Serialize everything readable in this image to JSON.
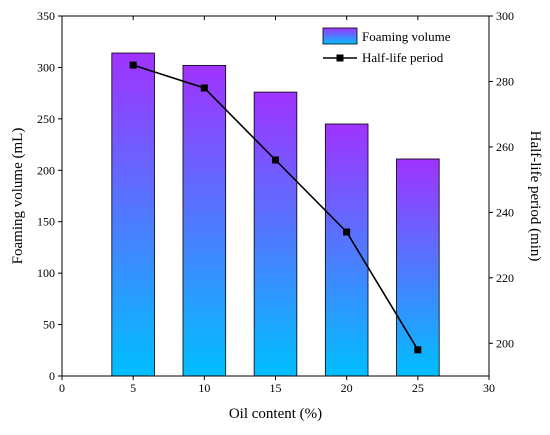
{
  "chart_data": {
    "type": "bar",
    "title": "",
    "xlabel": "Oil content (%)",
    "ylabel": "Foaming volume (mL)",
    "y2label": "Half-life period (min)",
    "xlim": [
      0,
      30
    ],
    "ylim": [
      0,
      350
    ],
    "y2lim": [
      190,
      300
    ],
    "xticks": [
      0,
      5,
      10,
      15,
      20,
      25,
      30
    ],
    "yticks": [
      0,
      50,
      100,
      150,
      200,
      250,
      300,
      350
    ],
    "y2ticks": [
      200,
      220,
      240,
      260,
      280,
      300
    ],
    "x": [
      5,
      10,
      15,
      20,
      25
    ],
    "series": [
      {
        "name": "Foaming volume",
        "type": "bar",
        "axis": "left",
        "values": [
          314,
          302,
          276,
          245,
          211
        ],
        "gradient": [
          "#a033ff",
          "#00bfff"
        ]
      },
      {
        "name": "Half-life period",
        "type": "line",
        "axis": "right",
        "values": [
          285,
          278,
          256,
          234,
          198
        ],
        "color": "#000000",
        "marker": "square"
      }
    ],
    "legend_position": "top-right",
    "grid": false
  }
}
